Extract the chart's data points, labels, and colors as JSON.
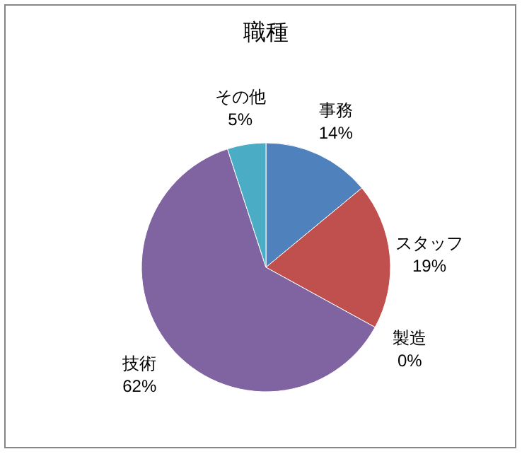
{
  "chart_data": {
    "type": "pie",
    "title": "職種",
    "categories": [
      "事務",
      "スタッフ",
      "製造",
      "技術",
      "その他"
    ],
    "values": [
      14,
      19,
      0,
      62,
      5
    ],
    "value_labels": [
      "14%",
      "19%",
      "0%",
      "62%",
      "5%"
    ],
    "colors": [
      "#4f81bd",
      "#c0504d",
      null,
      "#8064a2",
      "#4bacc6"
    ]
  }
}
